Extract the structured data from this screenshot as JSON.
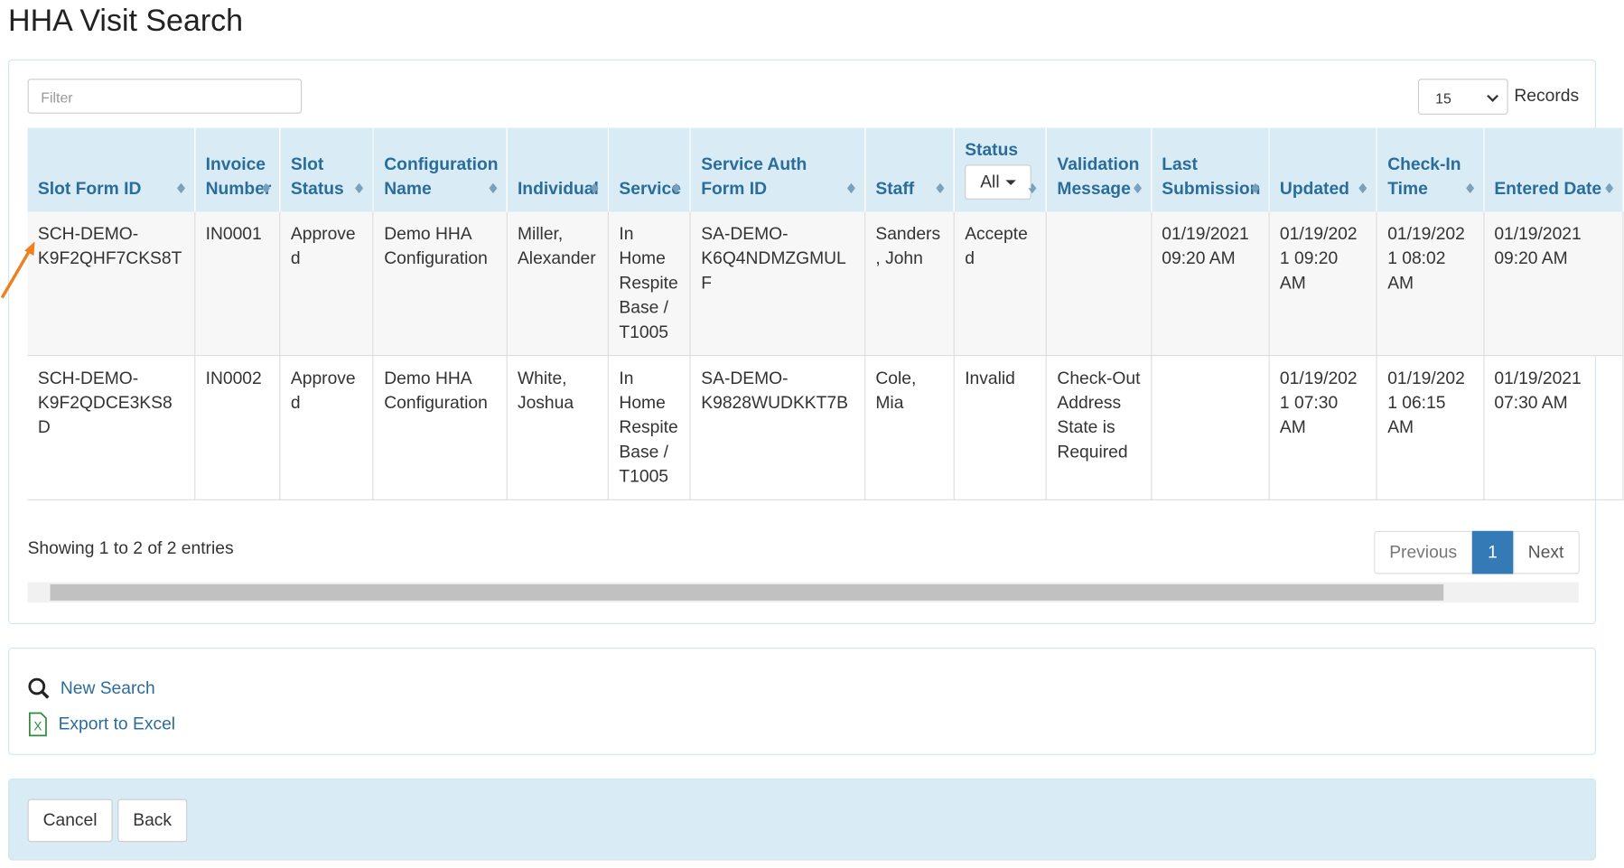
{
  "header": {
    "title": "HHA Visit Search"
  },
  "controls": {
    "filter_placeholder": "Filter",
    "page_size": "15",
    "page_size_label": "Records",
    "status_filter": "All"
  },
  "table": {
    "columns": [
      "Slot Form ID",
      "Invoice Number",
      "Slot Status",
      "Configuration Name",
      "Individual",
      "Service",
      "Service Auth Form ID",
      "Staff",
      "Status",
      "Validation Message",
      "Last Submission",
      "Updated",
      "Check-In Time",
      "Entered Date"
    ],
    "rows": [
      [
        "SCH-DEMO-K9F2QHF7CKS8T",
        "IN0001",
        "Approved",
        "Demo HHA Configuration",
        "Miller, Alexander",
        "In Home Respite Base / T1005",
        "SA-DEMO-K6Q4NDMZGMULF",
        "Sanders, John",
        "Accepted",
        null,
        "01/19/2021 09:20 AM",
        "01/19/2021 09:20 AM",
        "01/19/2021 08:02 AM",
        "01/19/2021 09:20 AM"
      ],
      [
        "SCH-DEMO-K9F2QDCE3KS8D",
        "IN0002",
        "Approved",
        "Demo HHA Configuration",
        "White, Joshua",
        "In Home Respite Base / T1005",
        "SA-DEMO-K9828WUDKKT7B",
        "Cole, Mia",
        "Invalid",
        "Check-Out Address State is Required",
        null,
        "01/19/2021 07:30 AM",
        "01/19/2021 06:15 AM",
        "01/19/2021 07:30 AM"
      ]
    ]
  },
  "footer": {
    "info": "Showing 1 to 2 of 2 entries",
    "previous": "Previous",
    "page": "1",
    "next": "Next"
  },
  "actions": {
    "new_search": "New Search",
    "export": "Export to Excel"
  },
  "buttons": {
    "cancel": "Cancel",
    "back": "Back"
  }
}
